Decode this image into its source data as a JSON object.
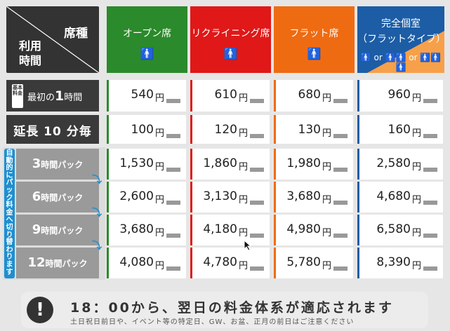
{
  "corner": {
    "seat_type": "席種",
    "time_label": "利用\n時間"
  },
  "seats": [
    {
      "label": "オープン席",
      "icon": "person-icon",
      "pic": "🚹"
    },
    {
      "label": "リクライニング席",
      "icon": "person-icon",
      "pic": "🚹"
    },
    {
      "label": "フラット席",
      "icon": "person-icon",
      "pic": "🚹"
    },
    {
      "label": "完全個室\n（フラットタイプ）",
      "icon": "group-icon",
      "pic": "🚹 or 🚹🚹 or 🚹🚹🚹"
    }
  ],
  "basic": {
    "badge": "基本料金",
    "prefix": "最初の",
    "num": "1",
    "suffix": "時間"
  },
  "extension": {
    "label": "延長 10 分毎"
  },
  "pack_side_label": "自動的にパック料金へ切り替わります",
  "packs": [
    {
      "num": "3",
      "word": "時間パック"
    },
    {
      "num": "6",
      "word": "時間パック"
    },
    {
      "num": "9",
      "word": "時間パック"
    },
    {
      "num": "12",
      "word": "時間パック"
    }
  ],
  "currency": "円",
  "prices": {
    "basic": [
      "540",
      "610",
      "680",
      "960"
    ],
    "ext": [
      "100",
      "120",
      "130",
      "160"
    ],
    "p3": [
      "1,530",
      "1,860",
      "1,980",
      "2,580"
    ],
    "p6": [
      "2,600",
      "3,130",
      "3,680",
      "4,680"
    ],
    "p9": [
      "3,680",
      "4,180",
      "4,980",
      "6,580"
    ],
    "p12": [
      "4,080",
      "4,780",
      "5,780",
      "8,390"
    ]
  },
  "footer": {
    "icon": "!",
    "main": "18：00から、翌日の料金体系が適応されます",
    "sub": "土日祝日前日や、イベント等の特定日、GW、お盆、正月の前日はご注意ください"
  },
  "colors": {
    "open": "#2b8a2b",
    "recliner": "#e01818",
    "flat": "#ef6b12",
    "private": "#1c5da6"
  }
}
